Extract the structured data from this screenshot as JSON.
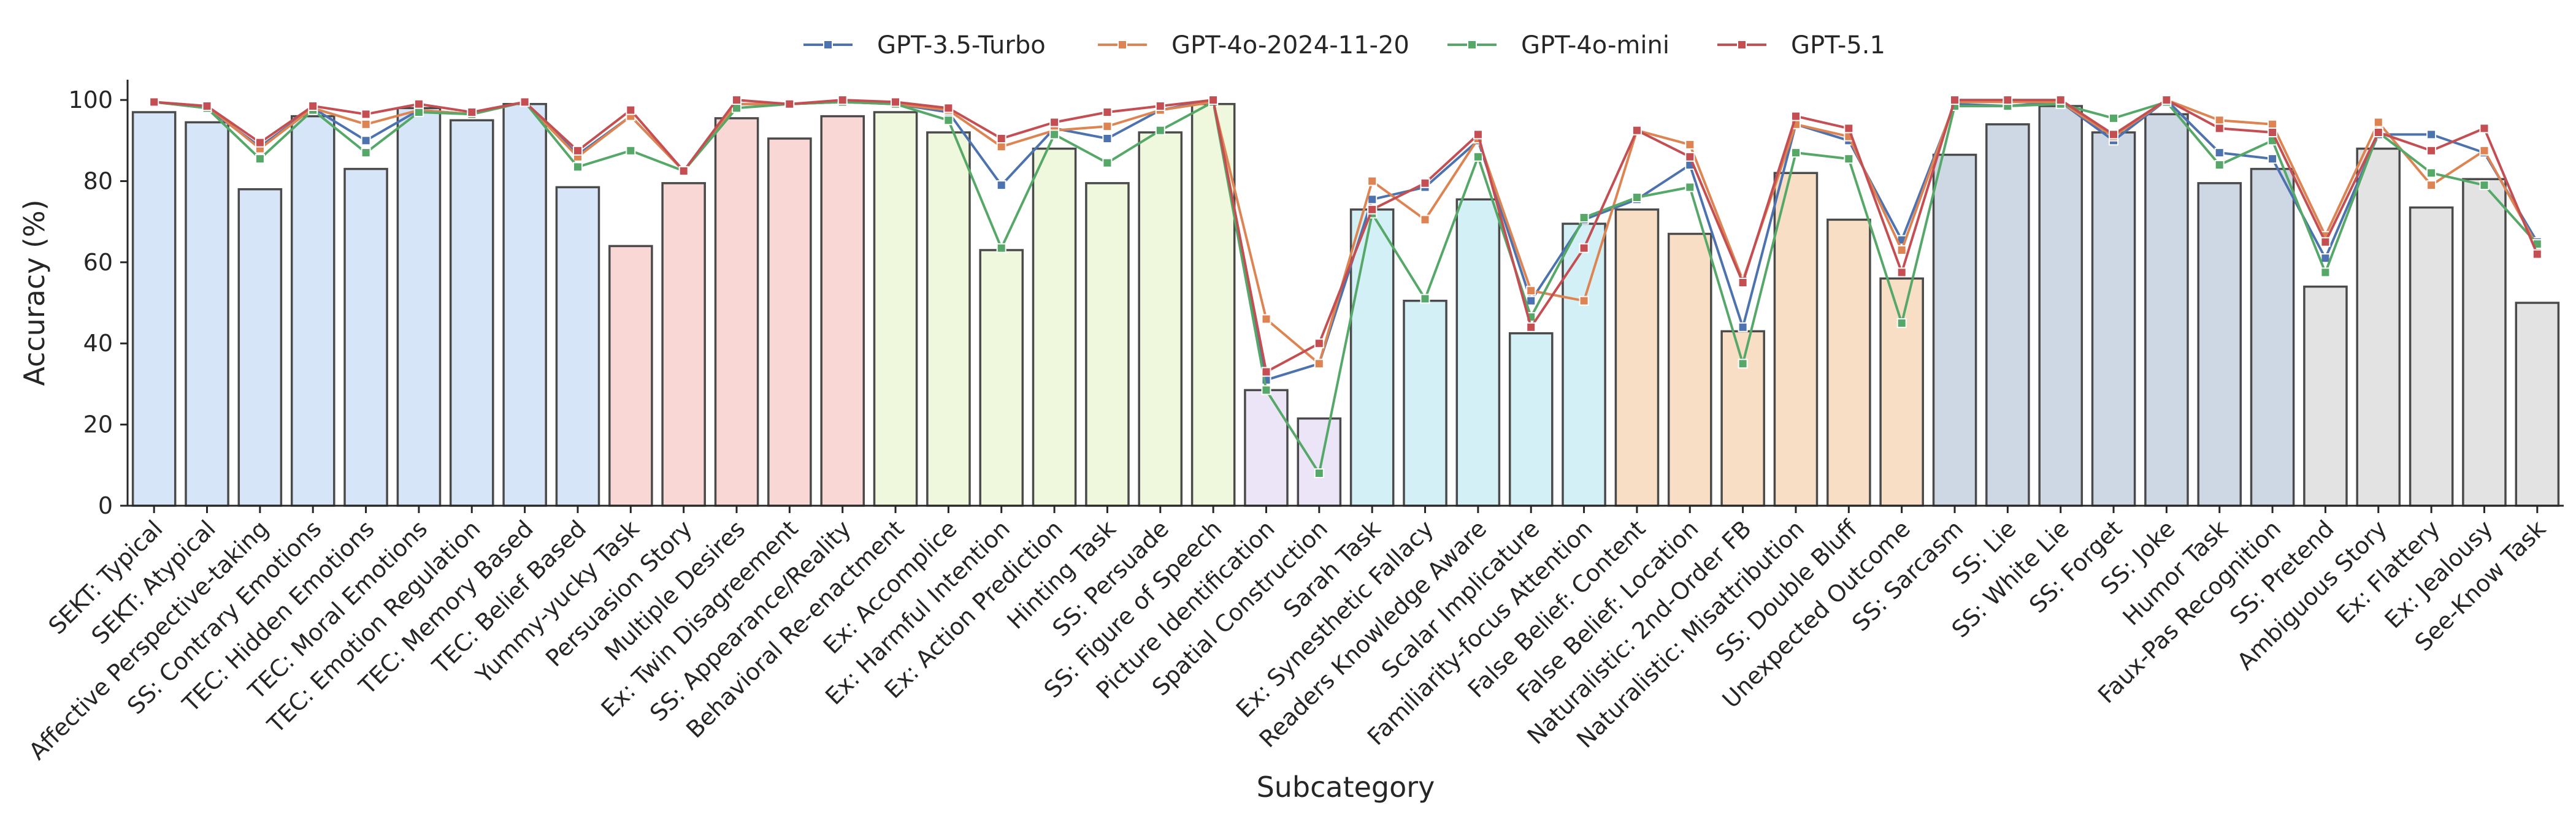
{
  "chart_data": {
    "type": "bar",
    "title": "",
    "xlabel": "Subcategory",
    "ylabel": "Accuracy (%)",
    "ylim": [
      0,
      105
    ],
    "yticks": [
      0,
      20,
      40,
      60,
      80,
      100
    ],
    "legend_position": "top-center",
    "grid": false,
    "categories": [
      "SEKT: Typical",
      "SEKT: Atypical",
      "Affective Perspective-taking",
      "SS: Contrary Emotions",
      "TEC: Hidden Emotions",
      "TEC: Moral Emotions",
      "TEC: Emotion Regulation",
      "TEC: Memory Based",
      "TEC: Belief Based",
      "Yummy-yucky Task",
      "Persuasion Story",
      "Multiple Desires",
      "Ex: Twin Disagreement",
      "SS: Appearance/Reality",
      "Behavioral Re-enactment",
      "Ex: Accomplice",
      "Ex: Harmful Intention",
      "Ex: Action Prediction",
      "Hinting Task",
      "SS: Persuade",
      "SS: Figure of Speech",
      "Picture Identification",
      "Spatial Construction",
      "Sarah Task",
      "Ex: Synesthetic Fallacy",
      "Readers Knowledge Aware",
      "Scalar Implicature",
      "Familiarity-focus Attention",
      "False Belief: Content",
      "False Belief: Location",
      "Naturalistic: 2nd-Order FB",
      "Naturalistic: Misattribution",
      "SS: Double Bluff",
      "Unexpected Outcome",
      "SS: Sarcasm",
      "SS: Lie",
      "SS: White Lie",
      "SS: Forget",
      "SS: Joke",
      "Humor Task",
      "Faux-Pas Recognition",
      "SS: Pretend",
      "Ambiguous Story",
      "Ex: Flattery",
      "Ex: Jealousy",
      "See-Know Task"
    ],
    "bar_values": [
      97,
      94.5,
      78,
      96,
      83,
      98,
      95,
      99,
      78.5,
      64,
      79.5,
      95.5,
      90.5,
      96,
      97,
      92,
      63,
      88,
      79.5,
      92,
      99,
      28.5,
      21.5,
      73,
      50.5,
      75.5,
      42.5,
      69.5,
      73,
      67,
      43,
      82,
      70.5,
      56,
      86.5,
      94,
      98.5,
      92,
      96.5,
      79.5,
      83,
      54,
      88,
      73.5,
      80.5,
      50
    ],
    "bar_colors": [
      "#d6e5f7",
      "#d6e5f7",
      "#d6e5f7",
      "#d6e5f7",
      "#d6e5f7",
      "#d6e5f7",
      "#d6e5f7",
      "#d6e5f7",
      "#d6e5f7",
      "#f9d7d5",
      "#f9d7d5",
      "#f9d7d5",
      "#f9d7d5",
      "#f9d7d5",
      "#eff8dc",
      "#eff8dc",
      "#eff8dc",
      "#eff8dc",
      "#eff8dc",
      "#eff8dc",
      "#eff8dc",
      "#ece4f7",
      "#ece4f7",
      "#d2f0f6",
      "#d2f0f6",
      "#d2f0f6",
      "#d2f0f6",
      "#d2f0f6",
      "#f7dec5",
      "#f7dec5",
      "#f7dec5",
      "#f7dec5",
      "#f7dec5",
      "#f7dec5",
      "#cdd8e4",
      "#cdd8e4",
      "#cdd8e4",
      "#cdd8e4",
      "#cdd8e4",
      "#cdd8e4",
      "#cdd8e4",
      "#e3e3e3",
      "#e3e3e3",
      "#e3e3e3",
      "#e3e3e3",
      "#e3e3e3"
    ],
    "series": [
      {
        "name": "GPT-3.5-Turbo",
        "color": "#4c72b0",
        "values": [
          99.5,
          98,
          88.5,
          98,
          90,
          97.5,
          96.5,
          99.5,
          86.5,
          96,
          82.5,
          99,
          99,
          99.5,
          99,
          97,
          79,
          93,
          90.5,
          97.5,
          100,
          31,
          35,
          75.5,
          78.5,
          90,
          50.5,
          70.5,
          75.5,
          84,
          44,
          94,
          90,
          65.5,
          99,
          98.5,
          99.5,
          90,
          100,
          87,
          85.5,
          61,
          91.5,
          91.5,
          87,
          65
        ]
      },
      {
        "name": "GPT-4o-2024-11-20",
        "color": "#dd8452",
        "values": [
          99.5,
          98.5,
          88,
          98,
          94,
          97.5,
          96.5,
          99.5,
          86,
          96,
          82.5,
          99,
          99,
          99.5,
          99,
          97.5,
          88.5,
          92.5,
          93.5,
          97.5,
          99.5,
          46,
          35,
          80,
          70.5,
          90.5,
          53,
          50.5,
          92.5,
          89,
          55.5,
          94,
          91,
          63,
          99.5,
          99.5,
          99.5,
          91,
          100,
          95,
          94,
          66.5,
          94.5,
          79,
          87.5,
          64
        ]
      },
      {
        "name": "GPT-4o-mini",
        "color": "#55a868",
        "values": [
          99.5,
          98,
          85.5,
          97.5,
          87,
          97,
          96.5,
          99.5,
          83.5,
          87.5,
          82.5,
          98,
          99,
          99.5,
          99,
          95,
          63.5,
          91.5,
          84.5,
          92.5,
          99.5,
          28.5,
          8,
          72,
          51,
          86,
          46.5,
          71,
          76,
          78.5,
          35,
          87,
          85.5,
          45,
          98.5,
          98.5,
          99,
          95.5,
          99.5,
          84,
          90,
          57.5,
          92,
          82,
          79,
          64.5
        ]
      },
      {
        "name": "GPT-5.1",
        "color": "#c44e52",
        "values": [
          99.5,
          98.5,
          89.5,
          98.5,
          96.5,
          99,
          97,
          99.5,
          87.5,
          97.5,
          82.5,
          100,
          99,
          100,
          99.5,
          98,
          90.5,
          94.5,
          97,
          98.5,
          100,
          33,
          40,
          73,
          79.5,
          91.5,
          44,
          63.5,
          92.5,
          86,
          55,
          96,
          93,
          57.5,
          100,
          100,
          100,
          91.5,
          100,
          93,
          92,
          65,
          92,
          87.5,
          93,
          62
        ]
      }
    ]
  }
}
